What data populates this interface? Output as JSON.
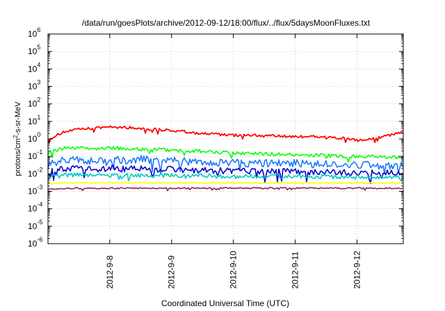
{
  "chart_data": {
    "type": "line",
    "title": "/data/run/goesPlots/archive/2012-09-12/18:00/flux/../flux/5daysMoonFluxes.txt",
    "xlabel": "Coordinated Universal Time (UTC)",
    "ylabel": {
      "prefix": "protons/cm",
      "sup": "2",
      "suffix": "-s-sr-MeV"
    },
    "x_range": [
      "2012-09-07T00:00",
      "2012-09-12T18:00"
    ],
    "x_ticks": [
      "2012-9-8",
      "2012-9-9",
      "2012-9-10",
      "2012-9-11",
      "2012-9-12"
    ],
    "y_scale": "log",
    "ylim": [
      1e-06,
      1000000.0
    ],
    "y_ticks": [
      {
        "base": "10",
        "exp": "6",
        "value": 1000000.0
      },
      {
        "base": "10",
        "exp": "5",
        "value": 100000.0
      },
      {
        "base": "10",
        "exp": "4",
        "value": 10000.0
      },
      {
        "base": "10",
        "exp": "3",
        "value": 1000.0
      },
      {
        "base": "10",
        "exp": "2",
        "value": 100.0
      },
      {
        "base": "10",
        "exp": "1",
        "value": 10.0
      },
      {
        "base": "10",
        "exp": "0",
        "value": 1
      },
      {
        "base": "10",
        "exp": "-1",
        "value": 0.1
      },
      {
        "base": "10",
        "exp": "-2",
        "value": 0.01
      },
      {
        "base": "10",
        "exp": "-3",
        "value": 0.001
      },
      {
        "base": "10",
        "exp": "-4",
        "value": 0.0001
      },
      {
        "base": "10",
        "exp": "-5",
        "value": 1e-05
      },
      {
        "base": "10",
        "exp": "-6",
        "value": 1e-06
      }
    ],
    "grid": true,
    "legend": "none",
    "series": [
      {
        "color": "#ff0000",
        "x": [
          "2012-09-07T00:00",
          "2012-09-07T06:00",
          "2012-09-07T12:00",
          "2012-09-07T18:00",
          "2012-09-08T00:00",
          "2012-09-08T06:00",
          "2012-09-08T12:00",
          "2012-09-08T18:00",
          "2012-09-09T00:00",
          "2012-09-09T06:00",
          "2012-09-09T12:00",
          "2012-09-09T18:00",
          "2012-09-10T00:00",
          "2012-09-10T06:00",
          "2012-09-10T12:00",
          "2012-09-10T18:00",
          "2012-09-11T00:00",
          "2012-09-11T06:00",
          "2012-09-11T12:00",
          "2012-09-11T18:00",
          "2012-09-12T00:00",
          "2012-09-12T06:00",
          "2012-09-12T12:00",
          "2012-09-12T18:00"
        ],
        "values": [
          0.9,
          2.5,
          3.5,
          4.0,
          5.0,
          4.5,
          4.0,
          3.5,
          3.0,
          2.5,
          2.0,
          1.8,
          1.6,
          1.7,
          1.5,
          1.4,
          1.3,
          1.4,
          1.2,
          1.1,
          0.8,
          1.0,
          1.5,
          2.5
        ]
      },
      {
        "color": "#00ff00",
        "x": [
          "2012-09-07T00:00",
          "2012-09-07T06:00",
          "2012-09-07T12:00",
          "2012-09-07T18:00",
          "2012-09-08T00:00",
          "2012-09-08T06:00",
          "2012-09-08T12:00",
          "2012-09-08T18:00",
          "2012-09-09T00:00",
          "2012-09-09T06:00",
          "2012-09-09T12:00",
          "2012-09-09T18:00",
          "2012-09-10T00:00",
          "2012-09-10T06:00",
          "2012-09-10T12:00",
          "2012-09-10T18:00",
          "2012-09-11T00:00",
          "2012-09-11T06:00",
          "2012-09-11T12:00",
          "2012-09-11T18:00",
          "2012-09-12T00:00",
          "2012-09-12T06:00",
          "2012-09-12T12:00",
          "2012-09-12T18:00"
        ],
        "values": [
          0.15,
          0.3,
          0.3,
          0.28,
          0.3,
          0.28,
          0.25,
          0.25,
          0.22,
          0.2,
          0.2,
          0.18,
          0.15,
          0.15,
          0.14,
          0.13,
          0.12,
          0.12,
          0.11,
          0.1,
          0.1,
          0.1,
          0.09,
          0.09
        ]
      },
      {
        "color": "#1e78ff",
        "x": [
          "2012-09-07T00:00",
          "2012-09-07T06:00",
          "2012-09-07T12:00",
          "2012-09-07T18:00",
          "2012-09-08T00:00",
          "2012-09-08T06:00",
          "2012-09-08T12:00",
          "2012-09-08T18:00",
          "2012-09-09T00:00",
          "2012-09-09T06:00",
          "2012-09-09T12:00",
          "2012-09-09T18:00",
          "2012-09-10T00:00",
          "2012-09-10T06:00",
          "2012-09-10T12:00",
          "2012-09-10T18:00",
          "2012-09-11T00:00",
          "2012-09-11T06:00",
          "2012-09-11T12:00",
          "2012-09-11T18:00",
          "2012-09-12T00:00",
          "2012-09-12T06:00",
          "2012-09-12T12:00",
          "2012-09-12T18:00"
        ],
        "values": [
          0.03,
          0.06,
          0.07,
          0.05,
          0.07,
          0.06,
          0.07,
          0.05,
          0.06,
          0.05,
          0.05,
          0.04,
          0.05,
          0.04,
          0.04,
          0.04,
          0.04,
          0.035,
          0.04,
          0.03,
          0.035,
          0.03,
          0.03,
          0.03
        ]
      },
      {
        "color": "#0000d0",
        "x": [
          "2012-09-07T00:00",
          "2012-09-07T06:00",
          "2012-09-07T12:00",
          "2012-09-07T18:00",
          "2012-09-08T00:00",
          "2012-09-08T06:00",
          "2012-09-08T12:00",
          "2012-09-08T18:00",
          "2012-09-09T00:00",
          "2012-09-09T06:00",
          "2012-09-09T12:00",
          "2012-09-09T18:00",
          "2012-09-10T00:00",
          "2012-09-10T06:00",
          "2012-09-10T12:00",
          "2012-09-10T18:00",
          "2012-09-11T00:00",
          "2012-09-11T06:00",
          "2012-09-11T12:00",
          "2012-09-11T18:00",
          "2012-09-12T00:00",
          "2012-09-12T06:00",
          "2012-09-12T12:00",
          "2012-09-12T18:00"
        ],
        "values": [
          0.012,
          0.02,
          0.02,
          0.018,
          0.02,
          0.018,
          0.02,
          0.017,
          0.018,
          0.016,
          0.017,
          0.015,
          0.015,
          0.014,
          0.014,
          0.013,
          0.013,
          0.012,
          0.012,
          0.012,
          0.012,
          0.011,
          0.011,
          0.011
        ]
      },
      {
        "color": "#00c8c8",
        "x": [
          "2012-09-07T00:00",
          "2012-09-07T06:00",
          "2012-09-07T12:00",
          "2012-09-07T18:00",
          "2012-09-08T00:00",
          "2012-09-08T06:00",
          "2012-09-08T12:00",
          "2012-09-08T18:00",
          "2012-09-09T00:00",
          "2012-09-09T06:00",
          "2012-09-09T12:00",
          "2012-09-09T18:00",
          "2012-09-10T00:00",
          "2012-09-10T06:00",
          "2012-09-10T12:00",
          "2012-09-10T18:00",
          "2012-09-11T00:00",
          "2012-09-11T06:00",
          "2012-09-11T12:00",
          "2012-09-11T18:00",
          "2012-09-12T00:00",
          "2012-09-12T06:00",
          "2012-09-12T12:00",
          "2012-09-12T18:00"
        ],
        "values": [
          0.006,
          0.008,
          0.009,
          0.008,
          0.008,
          0.008,
          0.008,
          0.008,
          0.008,
          0.007,
          0.008,
          0.007,
          0.007,
          0.007,
          0.007,
          0.007,
          0.007,
          0.006,
          0.007,
          0.006,
          0.006,
          0.006,
          0.006,
          0.006
        ]
      },
      {
        "color": "#ffff00",
        "x": [
          "2012-09-07T00:00",
          "2012-09-07T06:00",
          "2012-09-07T12:00",
          "2012-09-07T18:00",
          "2012-09-08T00:00",
          "2012-09-08T06:00",
          "2012-09-08T12:00",
          "2012-09-08T18:00",
          "2012-09-09T00:00",
          "2012-09-09T06:00",
          "2012-09-09T12:00",
          "2012-09-09T18:00",
          "2012-09-10T00:00",
          "2012-09-10T06:00",
          "2012-09-10T12:00",
          "2012-09-10T18:00",
          "2012-09-11T00:00",
          "2012-09-11T06:00",
          "2012-09-11T12:00",
          "2012-09-11T18:00",
          "2012-09-12T00:00",
          "2012-09-12T06:00",
          "2012-09-12T12:00",
          "2012-09-12T18:00"
        ],
        "values": [
          0.0028,
          0.003,
          0.003,
          0.003,
          0.003,
          0.003,
          0.003,
          0.003,
          0.003,
          0.003,
          0.003,
          0.003,
          0.003,
          0.003,
          0.003,
          0.003,
          0.003,
          0.003,
          0.003,
          0.003,
          0.003,
          0.003,
          0.003,
          0.003
        ]
      },
      {
        "color": "#8b2252",
        "x": [
          "2012-09-07T00:00",
          "2012-09-07T06:00",
          "2012-09-07T12:00",
          "2012-09-07T18:00",
          "2012-09-08T00:00",
          "2012-09-08T06:00",
          "2012-09-08T12:00",
          "2012-09-08T18:00",
          "2012-09-09T00:00",
          "2012-09-09T06:00",
          "2012-09-09T12:00",
          "2012-09-09T18:00",
          "2012-09-10T00:00",
          "2012-09-10T06:00",
          "2012-09-10T12:00",
          "2012-09-10T18:00",
          "2012-09-11T00:00",
          "2012-09-11T06:00",
          "2012-09-11T12:00",
          "2012-09-11T18:00",
          "2012-09-12T00:00",
          "2012-09-12T06:00",
          "2012-09-12T12:00",
          "2012-09-12T18:00"
        ],
        "values": [
          0.0013,
          0.0014,
          0.0015,
          0.0015,
          0.0015,
          0.0015,
          0.0015,
          0.0015,
          0.0015,
          0.0015,
          0.0015,
          0.0015,
          0.0015,
          0.0015,
          0.0015,
          0.0015,
          0.0015,
          0.0015,
          0.0015,
          0.0015,
          0.0015,
          0.0015,
          0.0015,
          0.0015
        ]
      }
    ]
  }
}
